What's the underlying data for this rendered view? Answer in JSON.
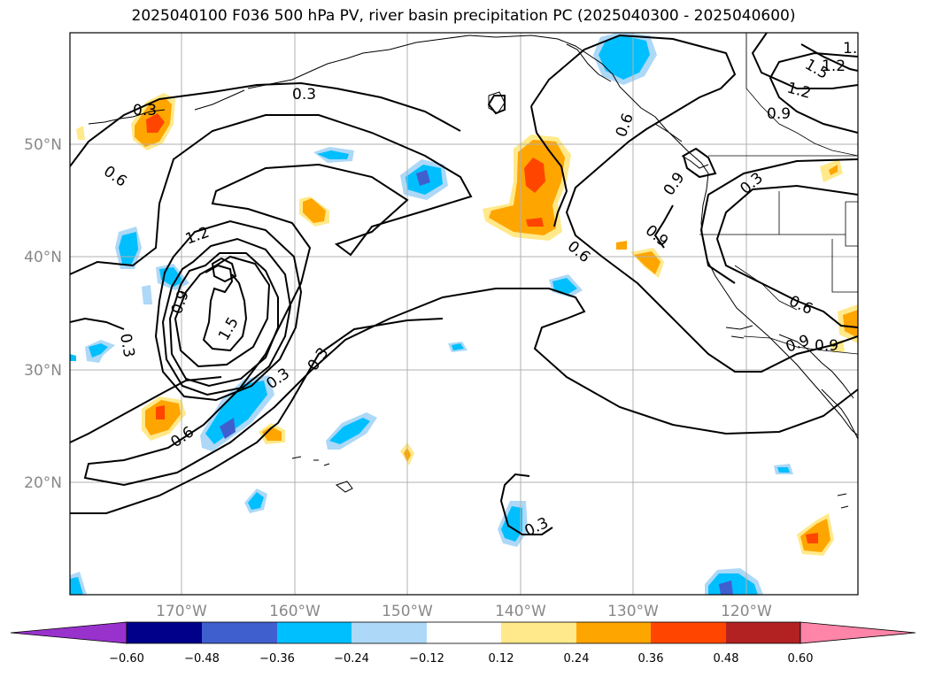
{
  "title": "2025040100 F036 500 hPa PV, river basin precipitation PC (2025040300 - 2025040600)",
  "axes": {
    "lat_ticks": [
      "20°N",
      "30°N",
      "40°N",
      "50°N"
    ],
    "lon_ticks": [
      "170°W",
      "160°W",
      "150°W",
      "140°W",
      "130°W",
      "120°W"
    ]
  },
  "colorbar": {
    "colors": [
      "#9932cc",
      "#00008b",
      "#3f5fcf",
      "#00bfff",
      "#add8f7",
      "#ffffff",
      "#ffe98a",
      "#ffa500",
      "#ff4500",
      "#b22222",
      "#ff85a8"
    ],
    "tick_labels": [
      "−0.60",
      "−0.48",
      "−0.36",
      "−0.24",
      "−0.12",
      "0.12",
      "0.24",
      "0.36",
      "0.48",
      "0.60"
    ]
  },
  "contour_labels": [
    "0.3",
    "0.6",
    "0.9",
    "1.2",
    "1.5",
    "0.6",
    "0.3",
    "0.9",
    "1.2",
    "1.5",
    "0.3",
    "0.3",
    "0.6",
    "0.3",
    "0.6",
    "0.9",
    "0.9",
    "0.3",
    "0.6",
    "0.9",
    "0.3",
    "1.2",
    "0.9",
    "1.5"
  ]
}
